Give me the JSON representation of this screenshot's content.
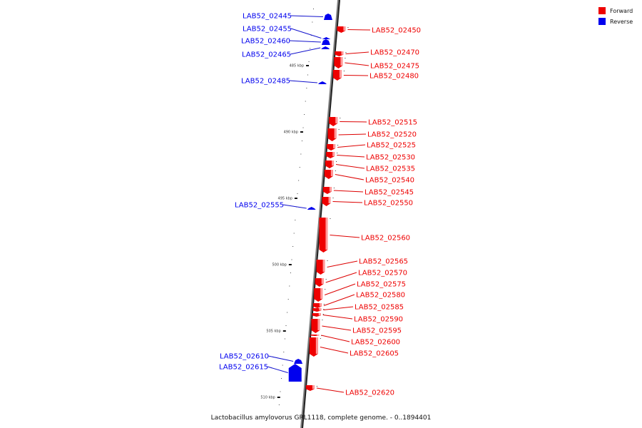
{
  "colors": {
    "forward": "#ee0000",
    "forward_light": "#ff9a9a",
    "reverse": "#0000ee",
    "axis": "#808080",
    "axis_shadow": "#222222",
    "connector_forward": "#dd0000",
    "connector_reverse": "#1111cc"
  },
  "legend": {
    "forward_label": "Forward",
    "reverse_label": "Reverse"
  },
  "caption": "Lactobacillus amylovorus GRL1118, complete genome. - 0..1894401",
  "scale_ticks": [
    "485 kbp",
    "490 kbp",
    "495 kbp",
    "500 kbp",
    "505 kbp",
    "510 kbp"
  ],
  "genes": [
    {
      "name": "LAB52_02445",
      "strand": "reverse"
    },
    {
      "name": "LAB52_02450",
      "strand": "forward"
    },
    {
      "name": "LAB52_02455",
      "strand": "reverse"
    },
    {
      "name": "LAB52_02460",
      "strand": "reverse"
    },
    {
      "name": "LAB52_02465",
      "strand": "reverse"
    },
    {
      "name": "LAB52_02470",
      "strand": "forward"
    },
    {
      "name": "LAB52_02475",
      "strand": "forward"
    },
    {
      "name": "LAB52_02480",
      "strand": "forward"
    },
    {
      "name": "LAB52_02485",
      "strand": "reverse"
    },
    {
      "name": "LAB52_02515",
      "strand": "forward"
    },
    {
      "name": "LAB52_02520",
      "strand": "forward"
    },
    {
      "name": "LAB52_02525",
      "strand": "forward"
    },
    {
      "name": "LAB52_02530",
      "strand": "forward"
    },
    {
      "name": "LAB52_02535",
      "strand": "forward"
    },
    {
      "name": "LAB52_02540",
      "strand": "forward"
    },
    {
      "name": "LAB52_02545",
      "strand": "forward"
    },
    {
      "name": "LAB52_02550",
      "strand": "forward"
    },
    {
      "name": "LAB52_02555",
      "strand": "reverse"
    },
    {
      "name": "LAB52_02560",
      "strand": "forward"
    },
    {
      "name": "LAB52_02565",
      "strand": "forward"
    },
    {
      "name": "LAB52_02570",
      "strand": "forward"
    },
    {
      "name": "LAB52_02575",
      "strand": "forward"
    },
    {
      "name": "LAB52_02580",
      "strand": "forward"
    },
    {
      "name": "LAB52_02585",
      "strand": "forward"
    },
    {
      "name": "LAB52_02590",
      "strand": "forward"
    },
    {
      "name": "LAB52_02595",
      "strand": "forward"
    },
    {
      "name": "LAB52_02600",
      "strand": "forward"
    },
    {
      "name": "LAB52_02605",
      "strand": "forward"
    },
    {
      "name": "LAB52_02610",
      "strand": "reverse"
    },
    {
      "name": "LAB52_02615",
      "strand": "reverse"
    },
    {
      "name": "LAB52_02620",
      "strand": "forward"
    }
  ]
}
